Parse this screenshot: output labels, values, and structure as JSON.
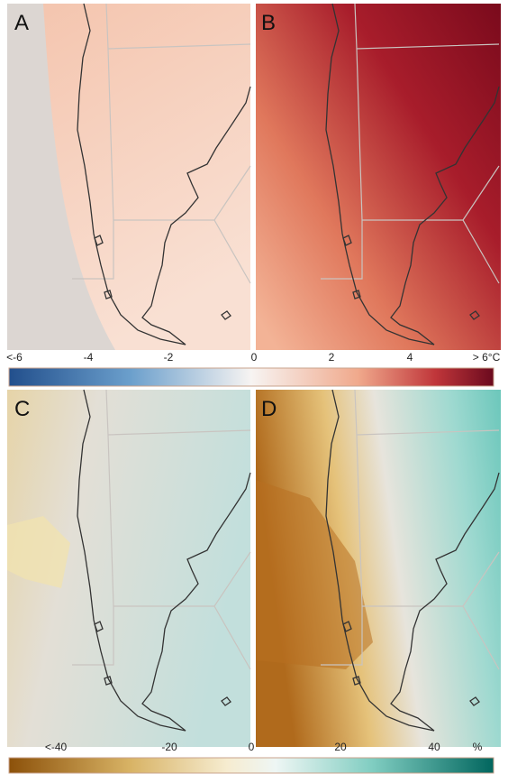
{
  "panels": [
    {
      "label": "A"
    },
    {
      "label": "B"
    },
    {
      "label": "C"
    },
    {
      "label": "D"
    }
  ],
  "colorbars": [
    {
      "ticks": [
        "<-6",
        "-4",
        "-2",
        "0",
        "2",
        "4",
        "> 6°C"
      ]
    },
    {
      "ticks": [
        "<-40",
        "-20",
        "0",
        "20",
        "40",
        "%"
      ]
    }
  ]
}
